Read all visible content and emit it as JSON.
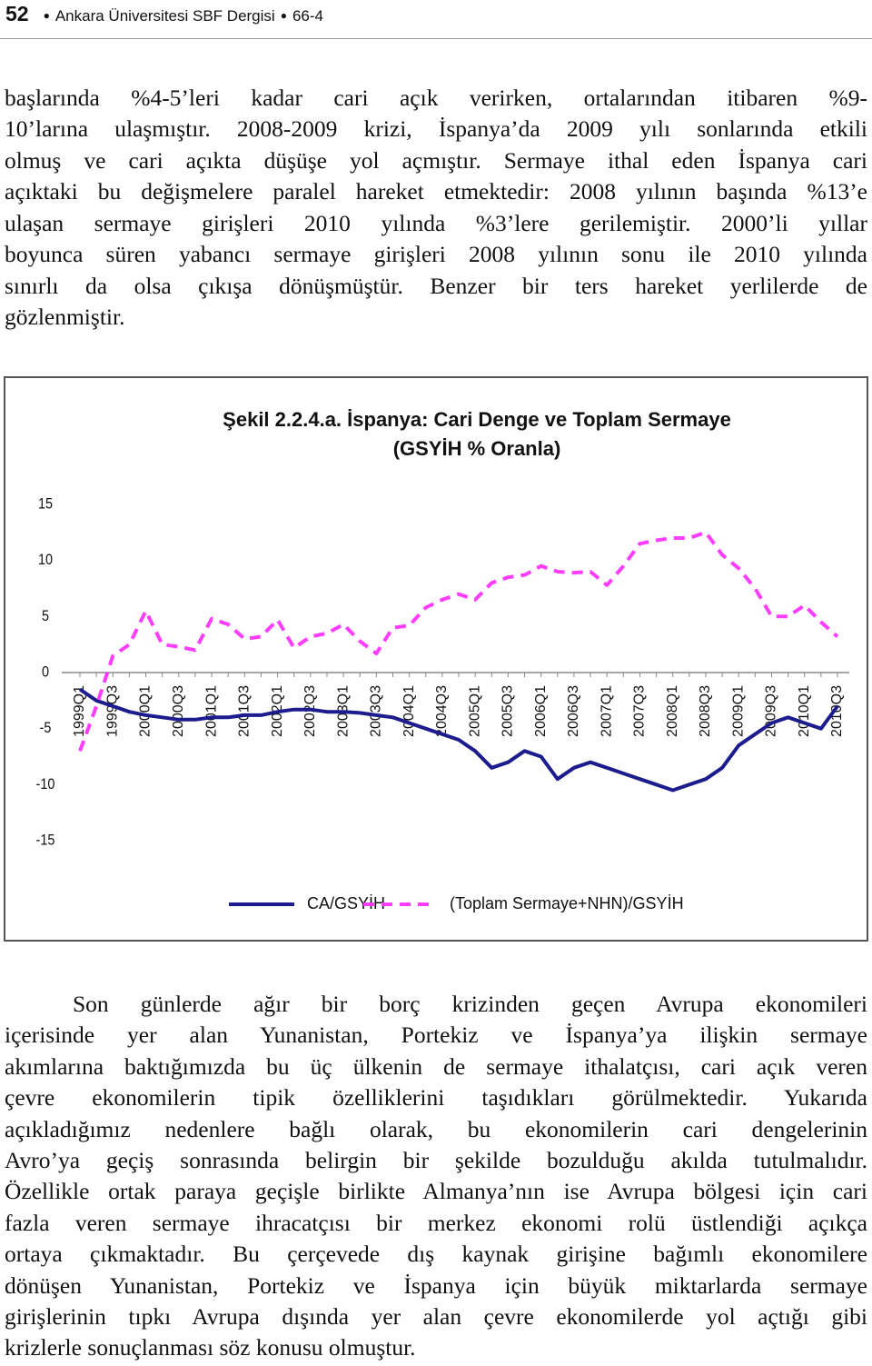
{
  "header": {
    "page": "52",
    "journal": "Ankara Üniversitesi SBF Dergisi",
    "issue": "66-4"
  },
  "paragraphs": [
    [
      "başlarında %4-5’leri kadar cari açık verirken, ortalarından itibaren %9-",
      "10’larına ulaşmıştır. 2008-2009 krizi, İspanya’da 2009 yılı sonlarında etkili",
      "olmuş ve cari açıkta düşüşe yol açmıştır. Sermaye ithal eden İspanya cari",
      "açıktaki bu değişmelere paralel hareket etmektedir: 2008 yılının başında %13’e",
      "ulaşan sermaye girişleri 2010 yılında %3’lere gerilemiştir. 2000’li yıllar",
      "boyunca süren yabancı sermaye girişleri 2008 yılının sonu ile 2010 yılında",
      "sınırlı da olsa çıkışa dönüşmüştür. Benzer bir ters hareket yerlilerde de",
      "gözlenmiştir."
    ],
    [
      "Son günlerde ağır bir borç krizinden geçen Avrupa ekonomileri",
      "içerisinde yer alan Yunanistan, Portekiz ve İspanya’ya ilişkin sermaye",
      "akımlarına baktığımızda bu üç ülkenin de sermaye ithalatçısı, cari açık veren",
      "çevre ekonomilerin tipik özelliklerini taşıdıkları görülmektedir. Yukarıda",
      "açıkladığımız nedenlere bağlı olarak, bu ekonomilerin cari dengelerinin",
      "Avro’ya geçiş sonrasında belirgin bir şekilde bozulduğu akılda tutulmalıdır.",
      "Özellikle ortak paraya geçişle birlikte Almanya’nın ise Avrupa bölgesi için cari",
      "fazla veren sermaye ihracatçısı bir merkez ekonomi rolü üstlendiği açıkça",
      "ortaya çıkmaktadır. Bu çerçevede dış kaynak girişine bağımlı ekonomilere",
      "dönüşen Yunanistan, Portekiz ve İspanya için büyük miktarlarda sermaye",
      "girişlerinin tıpkı Avrupa dışında yer alan çevre ekonomilerde yol açtığı gibi",
      "krizlerle sonuçlanması söz konusu olmuştur."
    ]
  ],
  "chart_data": {
    "type": "line",
    "title": "Şekil 2.2.4.a. İspanya: Cari Denge ve Toplam Sermaye",
    "subtitle": "(GSYİH % Oranla)",
    "categories": [
      "1999Q1",
      null,
      "1999Q3",
      null,
      "2000Q1",
      null,
      "2000Q3",
      null,
      "2001Q1",
      null,
      "2001Q3",
      null,
      "2002Q1",
      null,
      "2002Q3",
      null,
      "2003Q1",
      null,
      "2003Q3",
      null,
      "2004Q1",
      null,
      "2004Q3",
      null,
      "2005Q1",
      null,
      "2005Q3",
      null,
      "2006Q1",
      null,
      "2006Q3",
      null,
      "2007Q1",
      null,
      "2007Q3",
      null,
      "2008Q1",
      null,
      "2008Q3",
      null,
      "2009Q1",
      null,
      "2009Q3",
      null,
      "2010Q1",
      null,
      "2010Q3"
    ],
    "series": [
      {
        "name": "CA/GSYİH",
        "color": "#1c1c8e",
        "dashed": false,
        "values": [
          -1.5,
          -2.5,
          -3.0,
          -3.5,
          -3.8,
          -4.0,
          -4.2,
          -4.2,
          -4.0,
          -4.0,
          -3.8,
          -3.8,
          -3.5,
          -3.3,
          -3.3,
          -3.5,
          -3.5,
          -3.6,
          -3.8,
          -4.0,
          -4.5,
          -5.0,
          -5.5,
          -6.0,
          -7.0,
          -8.5,
          -8.0,
          -7.0,
          -7.5,
          -9.5,
          -8.5,
          -8.0,
          -8.5,
          -9.0,
          -9.5,
          -10.0,
          -10.5,
          -10.0,
          -9.5,
          -8.5,
          -6.5,
          -5.5,
          -4.5,
          -4.0,
          -4.5,
          -5.0,
          -3.0
        ]
      },
      {
        "name": "(Toplam Sermaye+NHN)/GSYİH",
        "color": "#ff3dff",
        "dashed": true,
        "values": [
          -7.0,
          -3.0,
          1.5,
          2.5,
          5.5,
          2.5,
          2.3,
          2.0,
          4.8,
          4.3,
          3.0,
          3.2,
          4.7,
          2.2,
          3.2,
          3.5,
          4.3,
          2.8,
          1.7,
          4.0,
          4.2,
          5.8,
          6.5,
          7.0,
          6.5,
          8.0,
          8.5,
          8.7,
          9.5,
          9.0,
          8.9,
          9.0,
          7.8,
          9.5,
          11.5,
          11.8,
          12.0,
          12.0,
          12.5,
          10.5,
          9.3,
          7.5,
          5.0,
          5.0,
          6.0,
          4.5,
          3.2
        ]
      }
    ],
    "ylim": [
      -15,
      15
    ],
    "yticks": [
      15,
      10,
      5,
      0,
      -5,
      -10,
      -15
    ],
    "grid": false,
    "legend": "bottom"
  }
}
